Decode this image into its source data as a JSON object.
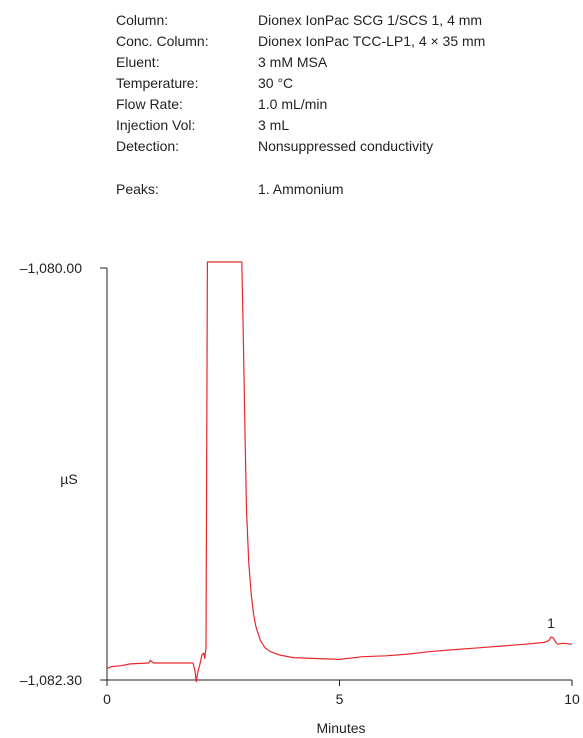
{
  "conditions": [
    {
      "label": "Column:",
      "value": "Dionex IonPac SCG 1/SCS 1, 4 mm"
    },
    {
      "label": "Conc. Column:",
      "value": "Dionex IonPac TCC-LP1, 4 × 35 mm"
    },
    {
      "label": "Eluent:",
      "value": "3 mM MSA"
    },
    {
      "label": "Temperature:",
      "value": "30 °C"
    },
    {
      "label": "Flow Rate:",
      "value": "1.0 mL/min"
    },
    {
      "label": "Injection Vol:",
      "value": "3 mL"
    },
    {
      "label": "Detection:",
      "value": "Nonsuppressed conductivity"
    }
  ],
  "peaks": {
    "label": "Peaks:",
    "value": "1. Ammonium"
  },
  "chart_data": {
    "type": "line",
    "xlabel": "Minutes",
    "ylabel": "µS",
    "xlim": [
      0,
      10
    ],
    "ylim": [
      -1082.3,
      -1080.0
    ],
    "x_ticks": [
      "0",
      "5",
      "10"
    ],
    "y_ticks": [
      "–1,080.00",
      "–1,082.30"
    ],
    "line_color": "#e8272c",
    "series": [
      {
        "x": [
          0,
          0.1,
          0.3,
          0.5,
          0.9,
          0.93,
          0.97,
          1.0,
          1.5,
          1.85,
          1.89,
          1.92,
          1.95,
          2.0,
          2.04,
          2.08,
          2.1,
          2.13,
          2.16,
          2.19,
          2.22,
          2.25,
          2.5,
          2.8,
          2.9,
          2.93,
          2.97,
          3.0,
          3.05,
          3.1,
          3.15,
          3.2,
          3.3,
          3.4,
          3.5,
          3.7,
          4.0,
          4.5,
          5.0,
          5.5,
          6.0,
          6.5,
          7.0,
          7.5,
          8.0,
          8.5,
          9.0,
          9.4,
          9.5,
          9.55,
          9.6,
          9.65,
          9.7,
          9.8,
          10.0
        ],
        "y": [
          -1082.235,
          -1082.225,
          -1082.22,
          -1082.21,
          -1082.205,
          -1082.19,
          -1082.2,
          -1082.205,
          -1082.205,
          -1082.205,
          -1082.245,
          -1082.31,
          -1082.26,
          -1082.21,
          -1082.16,
          -1082.15,
          -1082.18,
          -1082.12,
          -1079.9,
          -1079.9,
          -1079.9,
          -1079.9,
          -1079.9,
          -1079.9,
          -1079.9,
          -1080.35,
          -1080.95,
          -1081.35,
          -1081.65,
          -1081.82,
          -1081.93,
          -1082.0,
          -1082.08,
          -1082.12,
          -1082.14,
          -1082.16,
          -1082.175,
          -1082.18,
          -1082.185,
          -1082.17,
          -1082.165,
          -1082.155,
          -1082.14,
          -1082.13,
          -1082.12,
          -1082.11,
          -1082.1,
          -1082.09,
          -1082.08,
          -1082.06,
          -1082.065,
          -1082.09,
          -1082.1,
          -1082.095,
          -1082.1
        ]
      }
    ],
    "annotations": [
      {
        "text": "1",
        "x": 9.55,
        "y": -1082.01
      }
    ]
  }
}
